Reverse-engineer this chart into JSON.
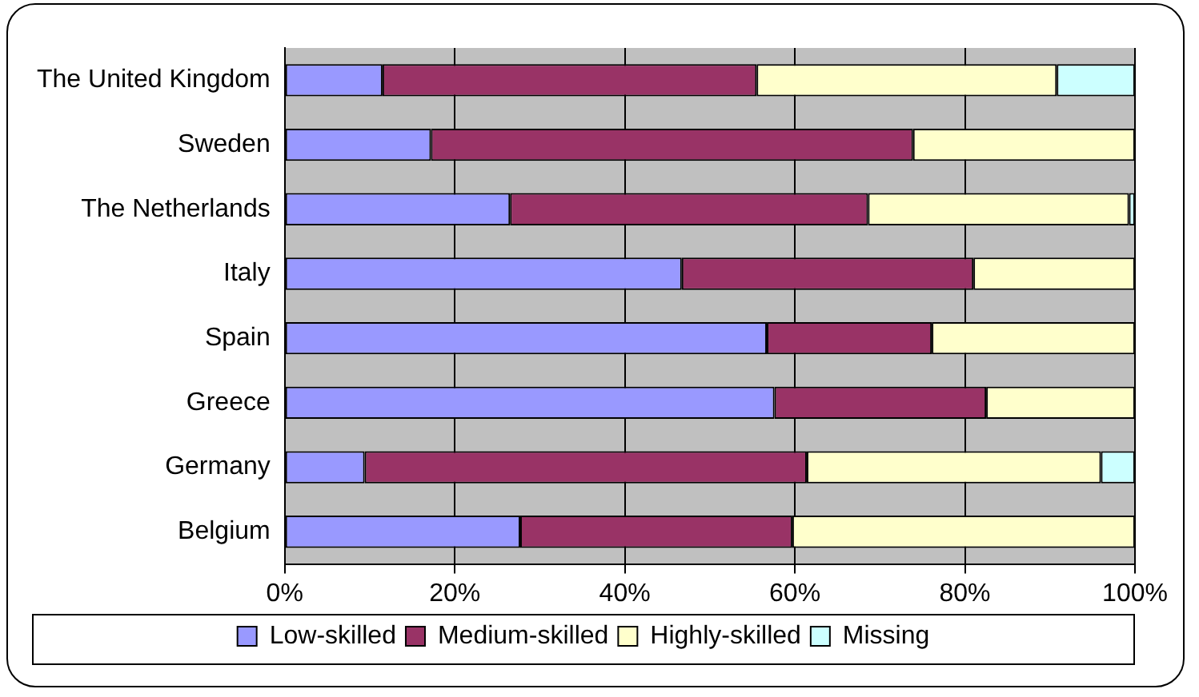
{
  "chart_data": {
    "type": "bar",
    "orientation": "horizontal",
    "stacked": true,
    "categories": [
      "The United Kingdom",
      "Sweden",
      "The Netherlands",
      "Italy",
      "Spain",
      "Greece",
      "Germany",
      "Belgium"
    ],
    "series": [
      {
        "name": "Low-skilled",
        "color": "#9999ff",
        "values": [
          11.5,
          17.2,
          26.5,
          46.7,
          56.7,
          57.6,
          9.4,
          27.7
        ]
      },
      {
        "name": "Medium-skilled",
        "color": "#993366",
        "values": [
          44.0,
          56.7,
          42.1,
          34.3,
          19.4,
          24.9,
          52.0,
          32.0
        ]
      },
      {
        "name": "Highly-skilled",
        "color": "#ffffcc",
        "values": [
          35.3,
          26.1,
          30.7,
          19.0,
          23.9,
          17.5,
          34.6,
          40.3
        ]
      },
      {
        "name": "Missing",
        "color": "#ccffff",
        "values": [
          9.2,
          null,
          0.7,
          null,
          null,
          null,
          4.0,
          null
        ]
      }
    ],
    "xlim": [
      0,
      100
    ],
    "xticks": [
      {
        "value": 0,
        "label": "0%"
      },
      {
        "value": 20,
        "label": "20%"
      },
      {
        "value": 40,
        "label": "40%"
      },
      {
        "value": 60,
        "label": "60%"
      },
      {
        "value": 80,
        "label": "80%"
      },
      {
        "value": 100,
        "label": "100%"
      }
    ],
    "grid": "x",
    "legend": "bottom"
  }
}
